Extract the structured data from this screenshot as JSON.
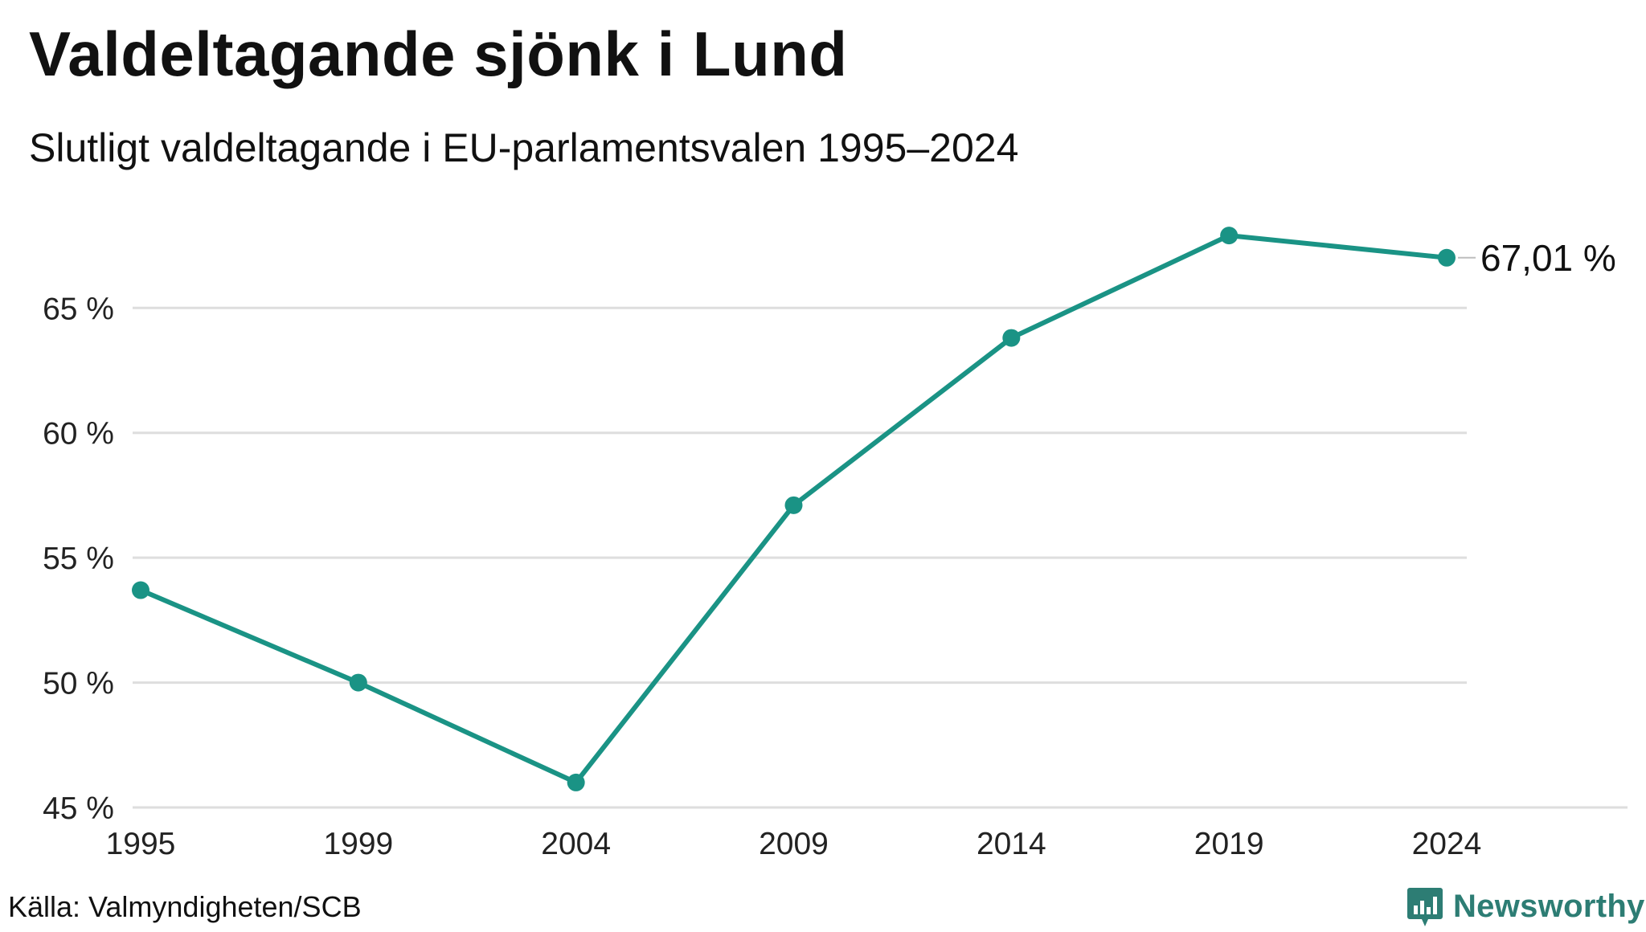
{
  "header": {
    "title": "Valdeltagande sjönk i Lund",
    "subtitle": "Slutligt valdeltagande i EU-parlamentsvalen 1995–2024"
  },
  "footer": {
    "source": "Källa: Valmyndigheten/SCB",
    "brand": "Newsworthy"
  },
  "colors": {
    "line": "#1a9385",
    "grid": "#dedede",
    "brand": "#2d7d74"
  },
  "chart_data": {
    "type": "line",
    "title": "Valdeltagande sjönk i Lund",
    "subtitle": "Slutligt valdeltagande i EU-parlamentsvalen 1995–2024",
    "xlabel": "",
    "ylabel": "",
    "categories": [
      "1995",
      "1999",
      "2004",
      "2009",
      "2014",
      "2019",
      "2024"
    ],
    "series": [
      {
        "values": [
          53.7,
          50.0,
          46.0,
          57.1,
          63.8,
          67.9,
          67.01
        ]
      }
    ],
    "ylim": [
      45,
      68
    ],
    "yticks": [
      45,
      50,
      55,
      60,
      65
    ],
    "ytick_labels": [
      "45 %",
      "50 %",
      "55 %",
      "60 %",
      "65 %"
    ],
    "end_label": "67,01 %",
    "grid": true,
    "legend": "none"
  }
}
